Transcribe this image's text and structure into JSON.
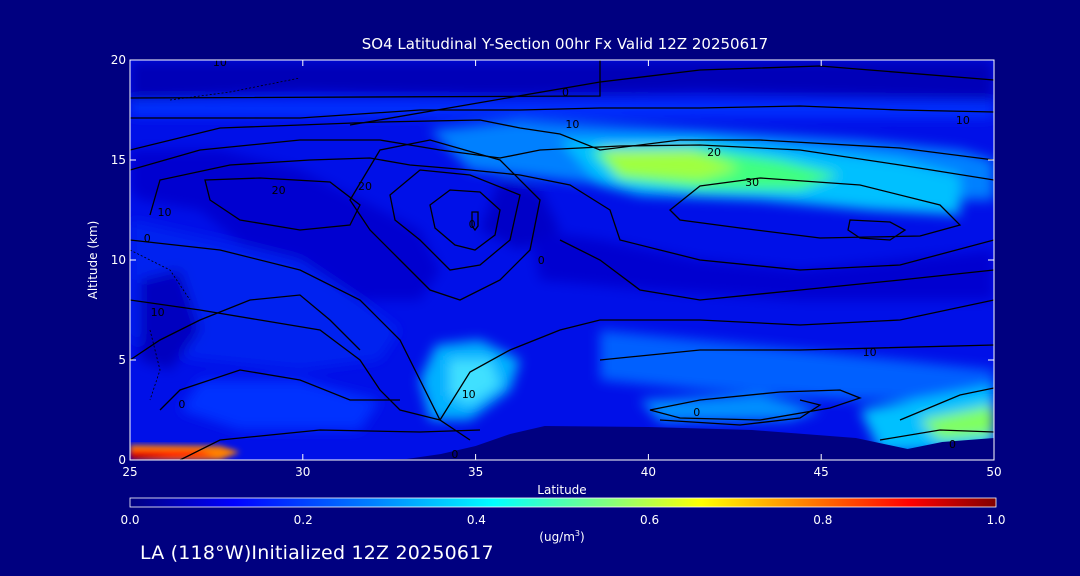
{
  "chart_data": {
    "type": "heatmap",
    "title": "SO4 Latitudinal Y-Section 00hr  Fx Valid 12Z 20250617",
    "xlabel": "Latitude",
    "ylabel": "Altitude (km)",
    "xlim": [
      25,
      50
    ],
    "ylim": [
      0,
      20
    ],
    "x_ticks": [
      25,
      30,
      35,
      40,
      45,
      50
    ],
    "y_ticks": [
      0,
      5,
      10,
      15,
      20
    ],
    "x_tick_labels": [
      "25",
      "30",
      "35",
      "40",
      "45",
      "50"
    ],
    "y_tick_labels": [
      "0",
      "5",
      "10",
      "15",
      "20"
    ],
    "colorbar": {
      "range": [
        0.0,
        1.0
      ],
      "ticks": [
        "0.0",
        "0.2",
        "0.4",
        "0.6",
        "0.8",
        "1.0"
      ],
      "unit": "(ug/m",
      "unit_sup": "3",
      "unit_close": ")",
      "colors": [
        "#000080",
        "#0000ff",
        "#0080ff",
        "#00ffff",
        "#80ff80",
        "#ffff00",
        "#ff8000",
        "#ff0000",
        "#800000"
      ]
    },
    "surface_terrain_km": [
      [
        25,
        0
      ],
      [
        28,
        0
      ],
      [
        31,
        0
      ],
      [
        33,
        0.05
      ],
      [
        34,
        0.3
      ],
      [
        35,
        0.7
      ],
      [
        36,
        1.3
      ],
      [
        37,
        1.7
      ],
      [
        40,
        1.65
      ],
      [
        43,
        1.5
      ],
      [
        46,
        1.1
      ],
      [
        47.5,
        0.55
      ],
      [
        48.5,
        0.9
      ],
      [
        50,
        1.1
      ]
    ],
    "contour_labels": [
      {
        "text": "10",
        "lat": 27.6,
        "alt": 19.9
      },
      {
        "text": "0",
        "lat": 37.6,
        "alt": 18.4
      },
      {
        "text": "10",
        "lat": 37.8,
        "alt": 16.8
      },
      {
        "text": "10",
        "lat": 49.1,
        "alt": 17.0
      },
      {
        "text": "20",
        "lat": 41.9,
        "alt": 15.4
      },
      {
        "text": "30",
        "lat": 43.0,
        "alt": 13.9
      },
      {
        "text": "20",
        "lat": 29.3,
        "alt": 13.5
      },
      {
        "text": "10",
        "lat": 26.0,
        "alt": 12.4
      },
      {
        "text": "0",
        "lat": 25.5,
        "alt": 11.1
      },
      {
        "text": "0",
        "lat": 36.9,
        "alt": 10.0
      },
      {
        "text": "0",
        "lat": 34.9,
        "alt": 11.8
      },
      {
        "text": "20",
        "lat": 31.8,
        "alt": 13.7
      },
      {
        "text": "10",
        "lat": 25.8,
        "alt": 7.4
      },
      {
        "text": "10",
        "lat": 46.4,
        "alt": 5.4
      },
      {
        "text": "10",
        "lat": 34.8,
        "alt": 3.3
      },
      {
        "text": "0",
        "lat": 26.5,
        "alt": 2.8
      },
      {
        "text": "0",
        "lat": 41.4,
        "alt": 2.4
      },
      {
        "text": "0",
        "lat": 48.8,
        "alt": 0.8
      },
      {
        "text": "0",
        "lat": 34.4,
        "alt": 0.3
      }
    ]
  },
  "footer": {
    "text": "LA (118°W)Initialized 12Z 20250617"
  }
}
